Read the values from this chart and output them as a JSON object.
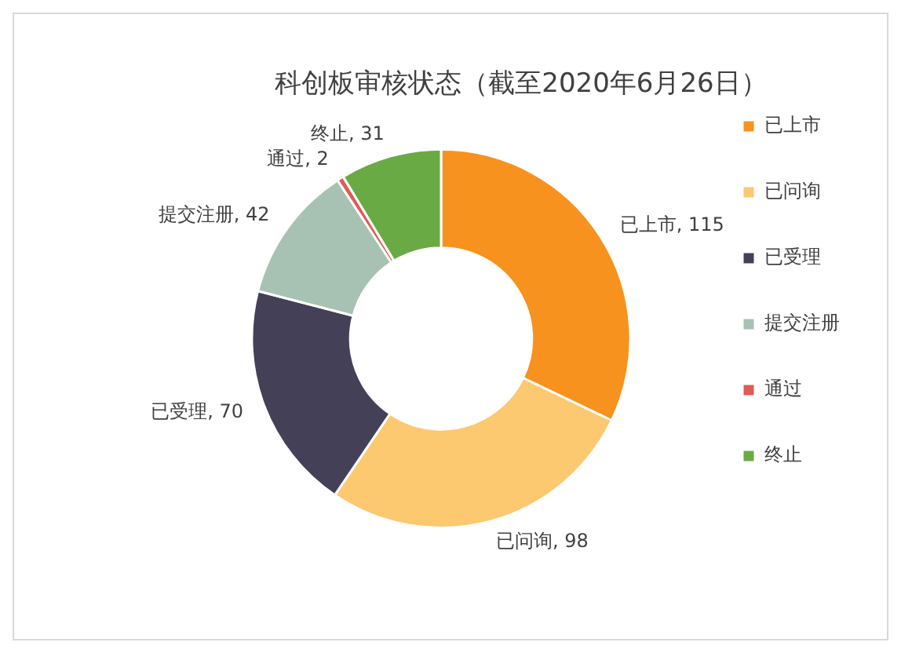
{
  "chart_data": {
    "type": "donut",
    "title": "科创板审核状态（截至2020年6月26日）",
    "categories": [
      "已上市",
      "已问询",
      "已受理",
      "提交注册",
      "通过",
      "终止"
    ],
    "values": [
      115,
      98,
      70,
      42,
      2,
      31
    ],
    "value_labels": [
      "已上市, 115",
      "已问询, 98",
      "已受理, 70",
      "提交注册, 42",
      "通过, 2",
      "终止, 31"
    ],
    "colors": [
      "#f7921e",
      "#fcc870",
      "#444058",
      "#a7c2b3",
      "#e05a55",
      "#6aaa45"
    ],
    "legend": "right"
  }
}
